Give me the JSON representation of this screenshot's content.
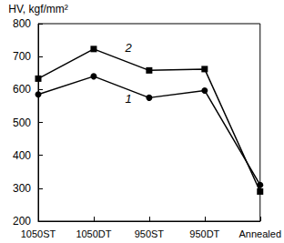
{
  "chart_data": {
    "type": "line",
    "ylabel": "HV, kgf/mm²",
    "categories": [
      "1050ST",
      "1050DT",
      "950ST",
      "950DT",
      "Annealed"
    ],
    "series": [
      {
        "name": "1",
        "color": "#000000",
        "marker": "circle",
        "line_style": "solid",
        "values": [
          585,
          640,
          575,
          597,
          310
        ]
      },
      {
        "name": "2",
        "color": "#000000",
        "marker": "square",
        "line_style": "solid",
        "values": [
          633,
          723,
          658,
          662,
          290
        ]
      }
    ],
    "ylim": [
      200,
      800
    ],
    "yticks": [
      200,
      300,
      400,
      500,
      600,
      700,
      800
    ],
    "grid": false
  }
}
